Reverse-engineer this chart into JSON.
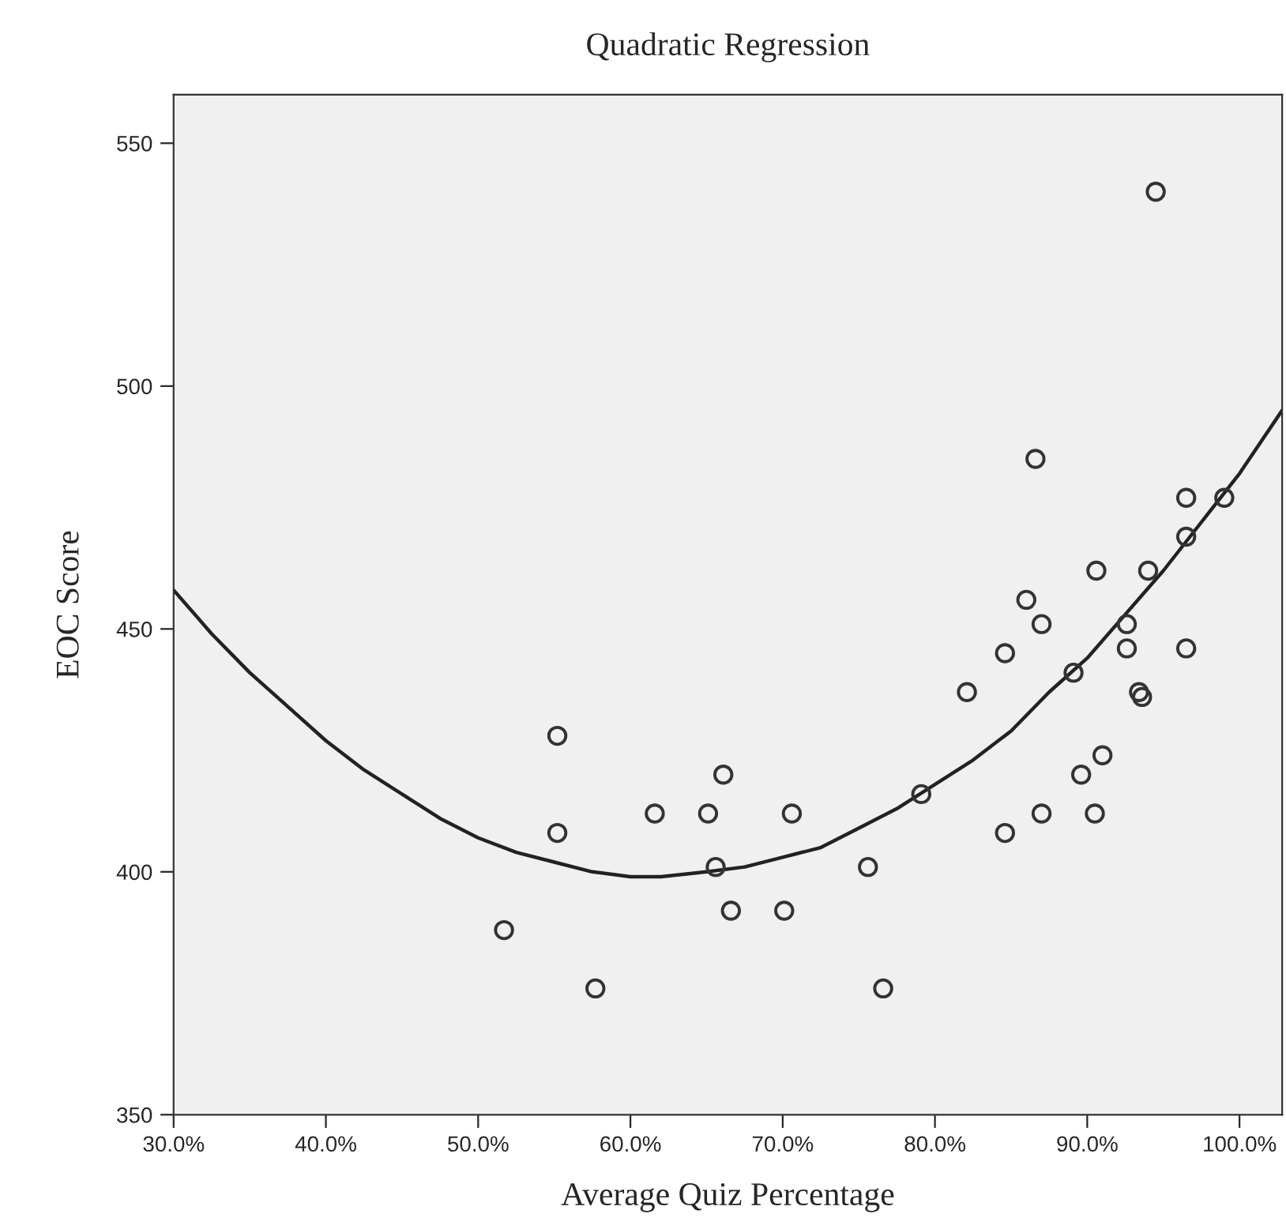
{
  "chart_data": {
    "type": "scatter",
    "title": "Quadratic Regression",
    "xlabel": "Average Quiz Percentage",
    "ylabel": "EOC Score",
    "xlim": [
      30,
      102.8
    ],
    "ylim": [
      350,
      560
    ],
    "xticks": [
      {
        "value": 30,
        "label": "30.0%"
      },
      {
        "value": 40,
        "label": "40.0%"
      },
      {
        "value": 50,
        "label": "50.0%"
      },
      {
        "value": 60,
        "label": "60.0%"
      },
      {
        "value": 70,
        "label": "70.0%"
      },
      {
        "value": 80,
        "label": "80.0%"
      },
      {
        "value": 90,
        "label": "90.0%"
      },
      {
        "value": 100,
        "label": "100.0%"
      }
    ],
    "yticks": [
      350,
      400,
      450,
      500,
      550
    ],
    "grid": false,
    "legend": false,
    "series": [
      {
        "color": "#333333",
        "marker": "circle",
        "x": [
          51.7,
          55.2,
          55.2,
          57.7,
          61.6,
          65.1,
          66.1,
          65.6,
          66.6,
          70.6,
          70.1,
          75.6,
          76.6,
          79.1,
          82.1,
          84.6,
          84.6,
          87.0,
          89.1,
          89.6,
          91.0,
          90.5,
          92.6,
          93.4,
          93.6,
          96.5,
          94.5,
          86.6,
          96.5,
          99.0,
          96.5,
          90.6,
          94.0,
          86.0,
          87.0,
          92.6
        ],
        "values": [
          388,
          428,
          408,
          376,
          412,
          412,
          420,
          401,
          392,
          412,
          392,
          401,
          376,
          416,
          437,
          445,
          408,
          412,
          441,
          420,
          424,
          412,
          446,
          437,
          436,
          446,
          540,
          485,
          477,
          477,
          469,
          462,
          462,
          456,
          451,
          451
        ]
      },
      {
        "type": "line",
        "color": "#222222",
        "marker": "none",
        "line_style": "solid",
        "x": [
          30,
          32.5,
          35,
          37.5,
          40,
          42.5,
          45,
          47.5,
          50,
          52.5,
          55,
          57.5,
          60,
          62,
          65,
          67.5,
          70,
          72.5,
          75,
          77.5,
          80,
          82.5,
          85,
          87.5,
          90,
          92.5,
          95,
          97.5,
          100,
          102.8
        ],
        "values": [
          458,
          449,
          441,
          434,
          427,
          421,
          416,
          411,
          407,
          404,
          402,
          400,
          399,
          399,
          400,
          401,
          403,
          405,
          409,
          413,
          418,
          423,
          429,
          437,
          444,
          453,
          462,
          472,
          482,
          495
        ]
      }
    ]
  }
}
